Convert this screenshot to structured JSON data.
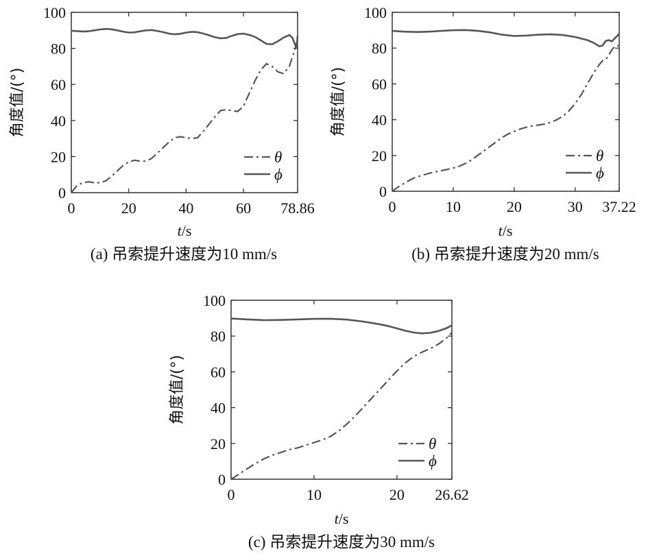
{
  "chart_data": [
    {
      "type": "line",
      "caption": "(a) 吊索提升速度为10 mm/s",
      "xlabel_italic": "t",
      "xlabel_unit": "/s",
      "ylabel": "角度值/(°)",
      "xlim": [
        0,
        78.86
      ],
      "ylim": [
        0,
        100
      ],
      "xticks": [
        0,
        20,
        40,
        60,
        78.86
      ],
      "xtick_labels": [
        "0",
        "20",
        "40",
        "60",
        "78.86"
      ],
      "yticks": [
        0,
        20,
        40,
        60,
        80,
        100
      ],
      "legend_position": "lower-right",
      "series": [
        {
          "name": "θ",
          "style": "dash-dot",
          "x": [
            0,
            2,
            4,
            6,
            8,
            10,
            12,
            14,
            16,
            18,
            20,
            22,
            24,
            26,
            28,
            30,
            32,
            34,
            36,
            38,
            40,
            42,
            44,
            46,
            48,
            50,
            52,
            54,
            56,
            58,
            60,
            62,
            64,
            66,
            68,
            70,
            72,
            74,
            76,
            78,
            78.86
          ],
          "y": [
            0,
            4,
            5.5,
            6,
            5.5,
            5.5,
            6.5,
            9,
            12,
            15,
            17,
            18,
            17.5,
            17.5,
            19,
            22,
            25,
            28,
            30.5,
            31,
            30.5,
            30,
            30.5,
            34,
            38,
            42,
            45.5,
            46,
            45.5,
            45,
            48,
            55,
            62,
            68,
            71.5,
            70,
            67,
            66,
            70,
            80,
            85
          ]
        },
        {
          "name": "ϕ",
          "style": "solid",
          "x": [
            0,
            2,
            4,
            6,
            8,
            10,
            12,
            14,
            16,
            18,
            20,
            22,
            24,
            26,
            28,
            30,
            32,
            34,
            36,
            38,
            40,
            42,
            44,
            46,
            48,
            50,
            52,
            54,
            56,
            58,
            60,
            62,
            64,
            66,
            68,
            70,
            72,
            74,
            76,
            77,
            78,
            78.5,
            78.86
          ],
          "y": [
            89.8,
            89.6,
            89.4,
            89.5,
            90,
            90.5,
            90.8,
            90.6,
            90,
            89.3,
            88.8,
            88.9,
            89.5,
            90,
            90.2,
            89.7,
            89,
            88.2,
            87.8,
            88.1,
            88.8,
            89.2,
            89,
            88.2,
            87.3,
            86.2,
            85.6,
            85.8,
            87,
            88,
            88.2,
            87.5,
            86.4,
            84.5,
            82.5,
            82.3,
            84,
            86,
            87.5,
            86,
            82,
            80,
            87
          ]
        }
      ]
    },
    {
      "type": "line",
      "caption": "(b) 吊索提升速度为20 mm/s",
      "xlabel_italic": "t",
      "xlabel_unit": "/s",
      "ylabel": "角度值/(°)",
      "xlim": [
        0,
        37.22
      ],
      "ylim": [
        0,
        100
      ],
      "xticks": [
        0,
        10,
        20,
        30,
        37.22
      ],
      "xtick_labels": [
        "0",
        "10",
        "20",
        "30",
        "37.22"
      ],
      "yticks": [
        0,
        20,
        40,
        60,
        80,
        100
      ],
      "legend_position": "lower-right",
      "series": [
        {
          "name": "θ",
          "style": "dash-dot",
          "x": [
            0,
            1,
            2,
            3,
            4,
            5,
            6,
            7,
            8,
            9,
            10,
            11,
            12,
            13,
            14,
            15,
            16,
            17,
            18,
            19,
            20,
            21,
            22,
            23,
            24,
            25,
            26,
            27,
            28,
            29,
            30,
            31,
            32,
            33,
            34,
            34.5,
            35,
            35.5,
            36,
            36.5,
            37.22
          ],
          "y": [
            0,
            2.5,
            4.5,
            6.5,
            8,
            9,
            10,
            10.8,
            11.5,
            12.2,
            13,
            14,
            15.5,
            17.5,
            20,
            22.5,
            25,
            27.5,
            30,
            32,
            33.5,
            34.8,
            35.8,
            36.5,
            37,
            37.6,
            38.5,
            40,
            42,
            45,
            49,
            54,
            60,
            66,
            71,
            73,
            73.5,
            76,
            79,
            81,
            81.5
          ]
        },
        {
          "name": "ϕ",
          "style": "solid",
          "x": [
            0,
            2,
            4,
            6,
            8,
            10,
            12,
            14,
            16,
            18,
            20,
            22,
            24,
            26,
            28,
            30,
            32,
            33,
            34,
            34.5,
            35,
            35.5,
            36,
            36.5,
            37.22
          ],
          "y": [
            89.6,
            89.2,
            89,
            89.2,
            89.6,
            90,
            90.1,
            89.7,
            88.8,
            87.5,
            86.8,
            87,
            87.5,
            87.7,
            87.3,
            86.2,
            84.5,
            83,
            81,
            81.5,
            84,
            84.5,
            83.8,
            85.5,
            88
          ]
        }
      ]
    },
    {
      "type": "line",
      "caption": "(c) 吊索提升速度为30 mm/s",
      "xlabel_italic": "t",
      "xlabel_unit": "/s",
      "ylabel": "角度值/(°)",
      "xlim": [
        0,
        26.62
      ],
      "ylim": [
        0,
        100
      ],
      "xticks": [
        0,
        10,
        20,
        26.62
      ],
      "xtick_labels": [
        "0",
        "10",
        "20",
        "26.62"
      ],
      "yticks": [
        0,
        20,
        40,
        60,
        80,
        100
      ],
      "legend_position": "lower-right",
      "series": [
        {
          "name": "θ",
          "style": "dash-dot",
          "x": [
            0,
            1,
            2,
            3,
            4,
            5,
            6,
            7,
            8,
            9,
            10,
            11,
            12,
            13,
            14,
            15,
            16,
            17,
            18,
            19,
            20,
            21,
            22,
            23,
            24,
            25,
            26,
            26.62
          ],
          "y": [
            0,
            3,
            6,
            9,
            11.5,
            13.5,
            15,
            16.5,
            17.5,
            19,
            20.5,
            22,
            24,
            27,
            31,
            35.5,
            40.5,
            45.5,
            50.5,
            55.5,
            60.5,
            65,
            68.5,
            71,
            73,
            75.5,
            79,
            82
          ]
        },
        {
          "name": "ϕ",
          "style": "solid",
          "x": [
            0,
            2,
            4,
            6,
            8,
            10,
            12,
            14,
            16,
            18,
            19,
            20,
            21,
            22,
            23,
            24,
            25,
            26,
            26.62
          ],
          "y": [
            89.8,
            89.3,
            88.9,
            89,
            89.3,
            89.6,
            89.7,
            89.2,
            88.1,
            86.5,
            85.5,
            84.3,
            83,
            82,
            81.5,
            81.8,
            82.8,
            84.5,
            86
          ]
        }
      ]
    }
  ]
}
